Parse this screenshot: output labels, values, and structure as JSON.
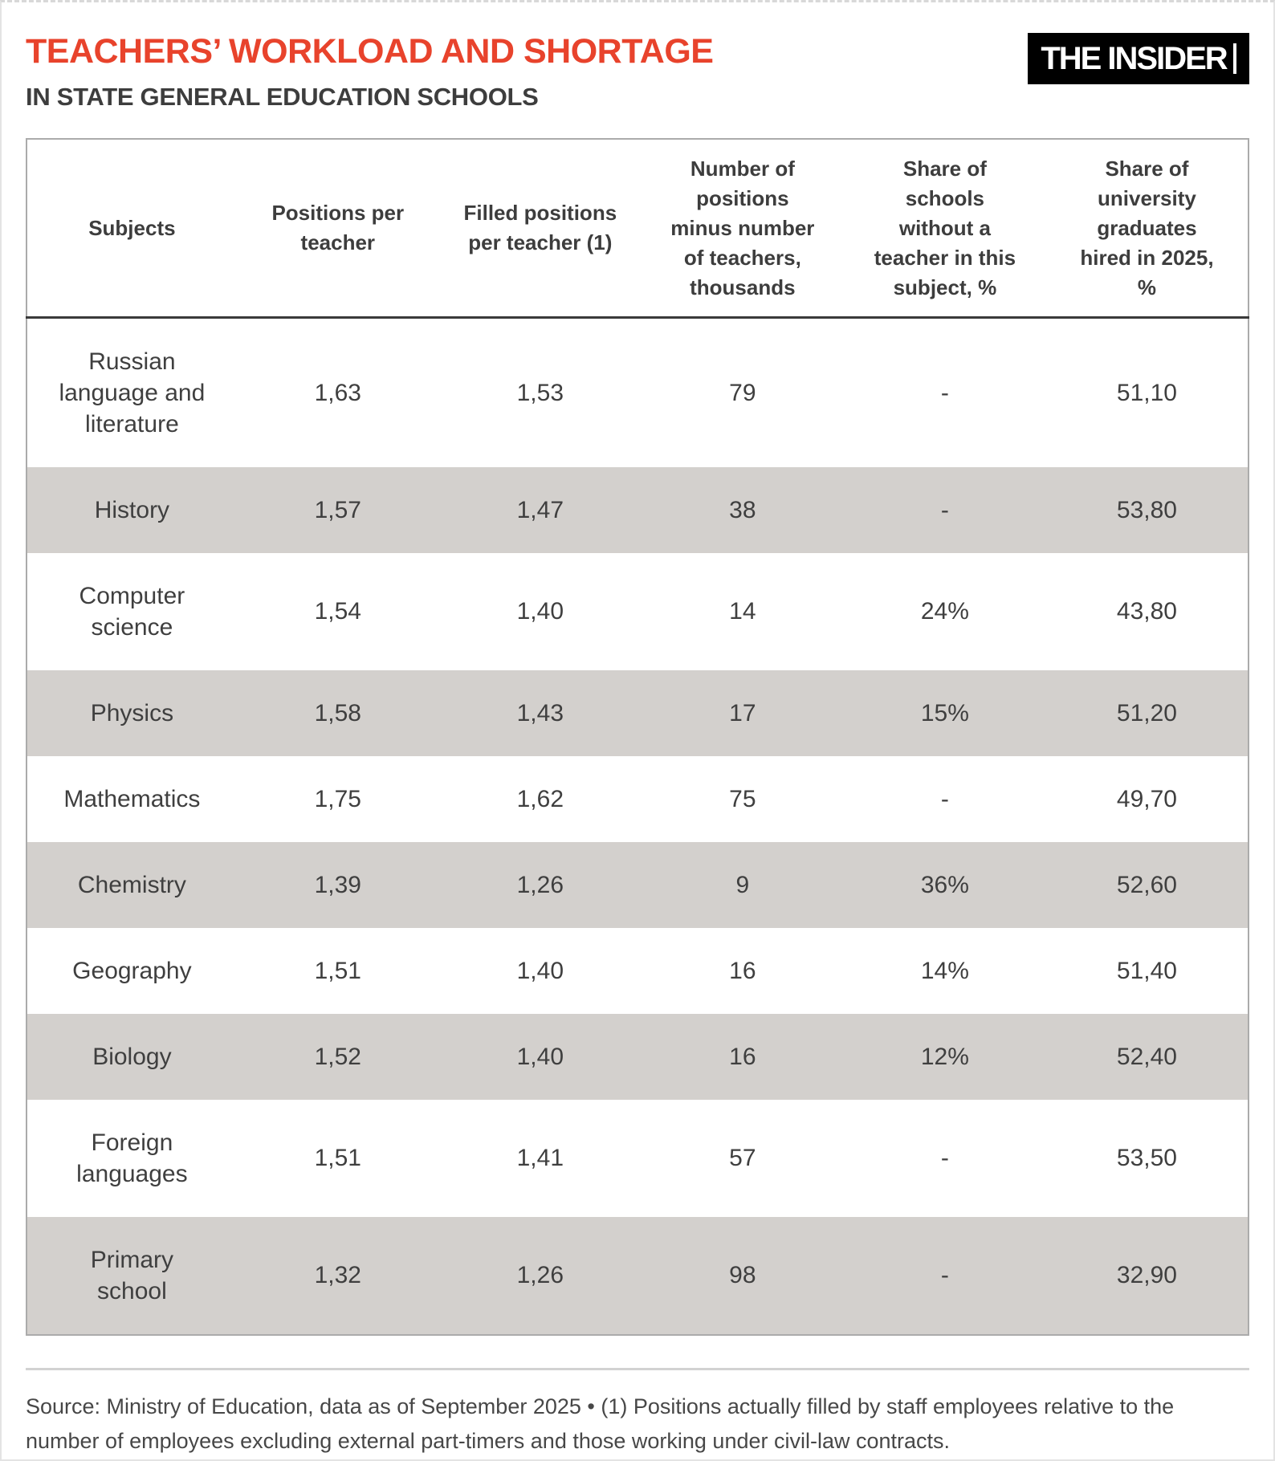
{
  "page": {
    "title": "TEACHERS’ WORKLOAD AND SHORTAGE",
    "subtitle": "IN STATE GENERAL EDUCATION SCHOOLS",
    "logo_text": "THE INSIDER",
    "source_note": "Source: Ministry of Education, data as of September 2025 • (1) Positions actually filled by staff employees relative to the number of employees excluding external part-timers and those working under civil-law contracts."
  },
  "colors": {
    "accent_red": "#E8432C",
    "stripe_gray": "#D3D0CD",
    "logo_bg": "#000000",
    "text_dark": "#3D3D3D"
  },
  "chart_data": {
    "type": "table",
    "title": "Teachers’ workload and shortage in state general education schools",
    "columns": [
      "Subjects",
      "Positions per\nteacher",
      "Filled positions\nper teacher (1)",
      "Number of\npositions\nminus number\nof teachers,\nthousands",
      "Share of\nschools\nwithout a\nteacher in this\nsubject, %",
      "Share of\nuniversity\ngraduates\nhired in 2025,\n%"
    ],
    "rows": [
      [
        "Russian\nlanguage and\nliterature",
        "1,63",
        "1,53",
        "79",
        "-",
        "51,10"
      ],
      [
        "History",
        "1,57",
        "1,47",
        "38",
        "-",
        "53,80"
      ],
      [
        "Computer\nscience",
        "1,54",
        "1,40",
        "14",
        "24%",
        "43,80"
      ],
      [
        "Physics",
        "1,58",
        "1,43",
        "17",
        "15%",
        "51,20"
      ],
      [
        "Mathematics",
        "1,75",
        "1,62",
        "75",
        "-",
        "49,70"
      ],
      [
        "Chemistry",
        "1,39",
        "1,26",
        "9",
        "36%",
        "52,60"
      ],
      [
        "Geography",
        "1,51",
        "1,40",
        "16",
        "14%",
        "51,40"
      ],
      [
        "Biology",
        "1,52",
        "1,40",
        "16",
        "12%",
        "52,40"
      ],
      [
        "Foreign\nlanguages",
        "1,51",
        "1,41",
        "57",
        "-",
        "53,50"
      ],
      [
        "Primary\nschool",
        "1,32",
        "1,26",
        "98",
        "-",
        "32,90"
      ]
    ],
    "legend_position": "none",
    "grid": "zebra-rows"
  }
}
